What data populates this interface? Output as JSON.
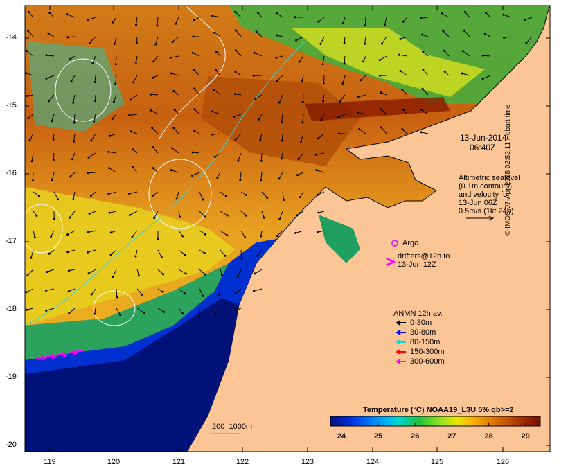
{
  "map": {
    "date": "13-Jun-2014",
    "time": "06:40Z",
    "lon_ticks": [
      "119",
      "120",
      "121",
      "122",
      "123",
      "124",
      "125",
      "126"
    ],
    "lat_ticks": [
      "-14",
      "-15",
      "-16",
      "-17",
      "-18",
      "-19",
      "-20"
    ],
    "credit": "© IMOS 07-Apr-2015 02:52:11 Hobart time"
  },
  "altimetry": {
    "lines": [
      "Altimetric sealevel",
      "(0.1m contours)",
      "and velocity for",
      "13-Jun 06Z",
      "0.5m/s (1kt 24h)"
    ]
  },
  "argo": {
    "label": "Argo",
    "color": "#e020e0"
  },
  "drifters": {
    "lines": [
      "drifters@12h to",
      "13-Jun 12Z"
    ],
    "color": "#ff00ff"
  },
  "anmn": {
    "title": "ANMN 12h av.",
    "items": [
      {
        "label": "0-30m",
        "color": "#000000"
      },
      {
        "label": "30-80m",
        "color": "#0000ff"
      },
      {
        "label": "80-150m",
        "color": "#00e0e0"
      },
      {
        "label": "150-300m",
        "color": "#ff0000"
      },
      {
        "label": "300-600m",
        "color": "#ff00ff"
      }
    ]
  },
  "bathymetry": {
    "label": "200  1000m",
    "color": "#40d0d0"
  },
  "colorbar": {
    "title": "Temperature (°C) NOAA19_L3U 5% qb>=2",
    "ticks": [
      "24",
      "25",
      "26",
      "27",
      "28",
      "29"
    ],
    "min": 23.7,
    "max": 29.4
  },
  "colors": {
    "land": "#fcc595",
    "deep_ocean": "#00127a"
  }
}
